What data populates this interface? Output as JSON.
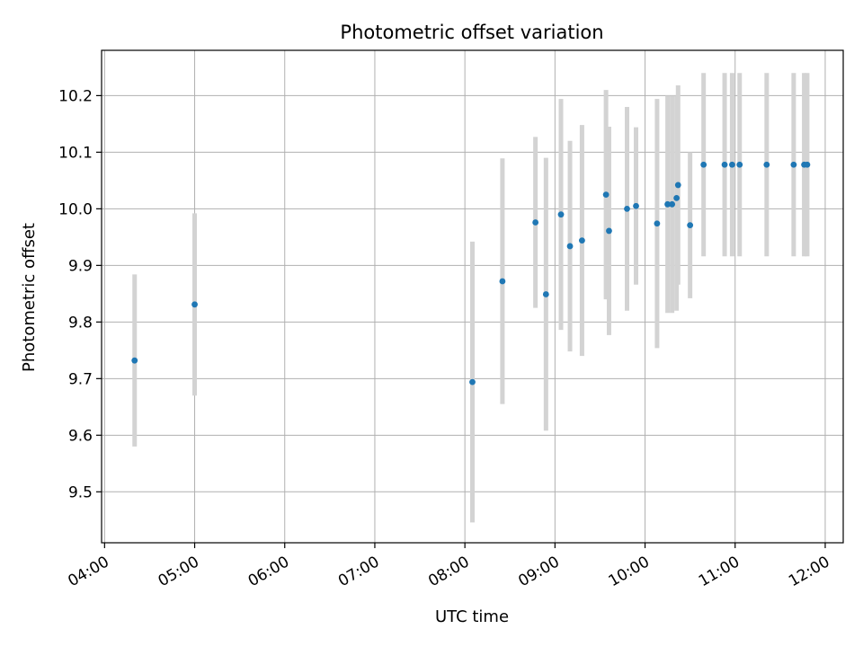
{
  "chart_data": {
    "type": "scatter",
    "title": "Photometric offset variation",
    "xlabel": "UTC time",
    "ylabel": "Photometric offset",
    "x_tick_labels": [
      "04:00",
      "05:00",
      "06:00",
      "07:00",
      "08:00",
      "09:00",
      "10:00",
      "11:00",
      "12:00"
    ],
    "y_ticks": [
      9.5,
      9.6,
      9.7,
      9.8,
      9.9,
      10.0,
      10.1,
      10.2
    ],
    "y_tick_labels": [
      "9.5",
      "9.6",
      "9.7",
      "9.8",
      "9.9",
      "10.0",
      "10.1",
      "10.2"
    ],
    "xlim": [
      "03:58",
      "12:12"
    ],
    "ylim": [
      9.41,
      10.28
    ],
    "grid": true,
    "colors": {
      "marker": "#1f77b4",
      "errorbar": "#d3d3d3",
      "grid": "#b0b0b0"
    },
    "points": [
      {
        "x": "04:20",
        "y": 9.732,
        "ylow": 9.58,
        "yhigh": 9.884
      },
      {
        "x": "05:00",
        "y": 9.831,
        "ylow": 9.67,
        "yhigh": 9.992
      },
      {
        "x": "08:05",
        "y": 9.694,
        "ylow": 9.446,
        "yhigh": 9.942
      },
      {
        "x": "08:25",
        "y": 9.872,
        "ylow": 9.655,
        "yhigh": 10.089
      },
      {
        "x": "08:47",
        "y": 9.976,
        "ylow": 9.825,
        "yhigh": 10.127
      },
      {
        "x": "08:54",
        "y": 9.849,
        "ylow": 9.608,
        "yhigh": 10.09
      },
      {
        "x": "09:04",
        "y": 9.99,
        "ylow": 9.786,
        "yhigh": 10.194
      },
      {
        "x": "09:10",
        "y": 9.934,
        "ylow": 9.748,
        "yhigh": 10.12
      },
      {
        "x": "09:18",
        "y": 9.944,
        "ylow": 9.74,
        "yhigh": 10.148
      },
      {
        "x": "09:34",
        "y": 10.025,
        "ylow": 9.84,
        "yhigh": 10.21
      },
      {
        "x": "09:36",
        "y": 9.961,
        "ylow": 9.777,
        "yhigh": 10.145
      },
      {
        "x": "09:48",
        "y": 10.0,
        "ylow": 9.82,
        "yhigh": 10.18
      },
      {
        "x": "09:54",
        "y": 10.005,
        "ylow": 9.866,
        "yhigh": 10.144
      },
      {
        "x": "10:08",
        "y": 9.974,
        "ylow": 9.754,
        "yhigh": 10.194
      },
      {
        "x": "10:15",
        "y": 10.008,
        "ylow": 9.816,
        "yhigh": 10.2
      },
      {
        "x": "10:18",
        "y": 10.008,
        "ylow": 9.816,
        "yhigh": 10.2
      },
      {
        "x": "10:21",
        "y": 10.019,
        "ylow": 9.82,
        "yhigh": 10.2
      },
      {
        "x": "10:22",
        "y": 10.042,
        "ylow": 9.866,
        "yhigh": 10.218
      },
      {
        "x": "10:30",
        "y": 9.971,
        "ylow": 9.842,
        "yhigh": 10.1
      },
      {
        "x": "10:39",
        "y": 10.078,
        "ylow": 9.916,
        "yhigh": 10.24
      },
      {
        "x": "10:53",
        "y": 10.078,
        "ylow": 9.916,
        "yhigh": 10.24
      },
      {
        "x": "10:58",
        "y": 10.078,
        "ylow": 9.916,
        "yhigh": 10.24
      },
      {
        "x": "11:03",
        "y": 10.078,
        "ylow": 9.916,
        "yhigh": 10.24
      },
      {
        "x": "11:21",
        "y": 10.078,
        "ylow": 9.916,
        "yhigh": 10.24
      },
      {
        "x": "11:39",
        "y": 10.078,
        "ylow": 9.916,
        "yhigh": 10.24
      },
      {
        "x": "11:46",
        "y": 10.078,
        "ylow": 9.916,
        "yhigh": 10.24
      },
      {
        "x": "11:48",
        "y": 10.078,
        "ylow": 9.916,
        "yhigh": 10.24
      }
    ]
  }
}
